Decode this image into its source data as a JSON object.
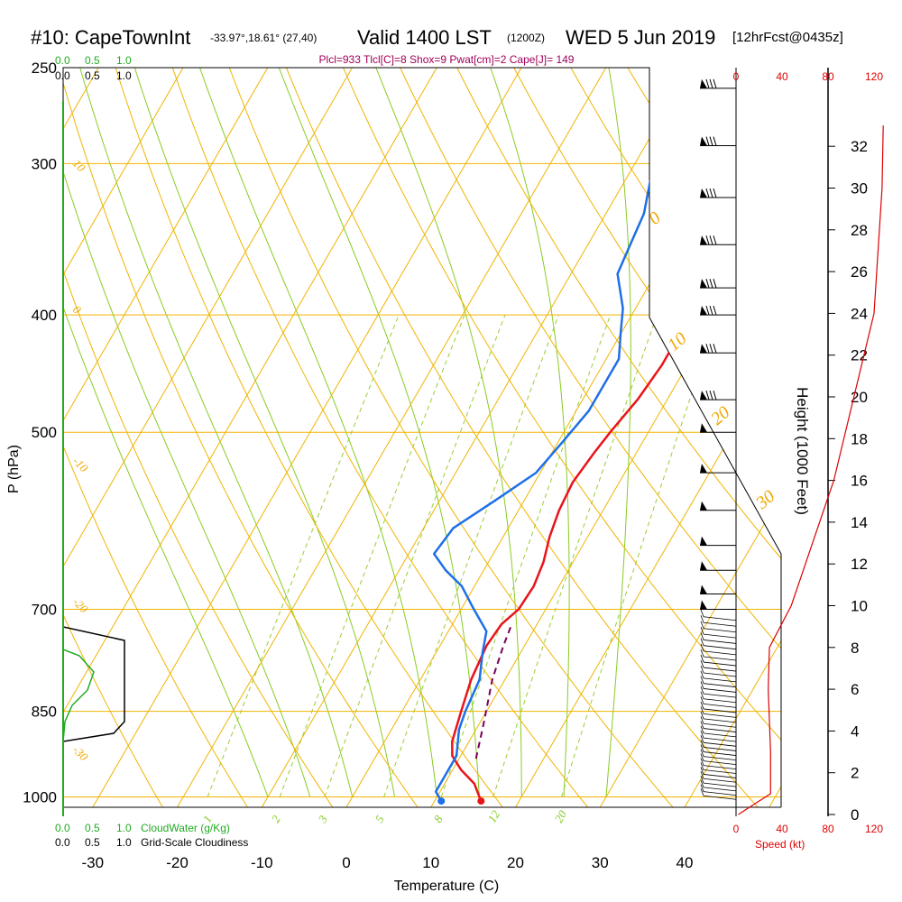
{
  "header": {
    "station": "#10: CapeTownInt",
    "coords": "-33.97°,18.61° (27,40)",
    "valid": "Valid 1400 LST",
    "valid_z": "(1200Z)",
    "date": "WED 5 Jun 2019",
    "forecast": "[12hrFcst@0435z]",
    "params": "Plcl=933 Tlcl[C]=8 Shox=9 Pwat[cm]=2 Cape[J]= 149"
  },
  "axes": {
    "xlabel": "Temperature (C)",
    "ylabel": "P (hPa)",
    "right_label": "Height (1000 Feet)",
    "speed_label": "Speed (kt)",
    "cloudwater_label": "CloudWater (g/Kg)",
    "cloudiness_label": "Grid-Scale Cloudiness"
  },
  "colors": {
    "temperature": "#e8141b",
    "dewpoint": "#1e6fe8",
    "parcel": "#7a0055",
    "isotherm": "#f0b400",
    "dry_adiabat": "#f0b400",
    "moist_adiabat": "#88cc22",
    "mixing_ratio": "#99cc33",
    "wind_speed": "#dd0000",
    "cloud_water": "#22aa22"
  },
  "chart_data": {
    "type": "line",
    "title": "#10: CapeTownInt Valid 1400 LST (1200Z) WED 5 Jun 2019 [12hrFcst@0435z]",
    "xlabel": "Temperature (C)",
    "ylabel": "P (hPa)",
    "xlim": [
      -34,
      48
    ],
    "ylim": [
      1020,
      250
    ],
    "y_scale": "log",
    "x_ticks": [
      -30,
      -20,
      -10,
      0,
      10,
      20,
      30,
      40
    ],
    "x_tick_labels": [
      "-30",
      "-20",
      "-10",
      "0",
      "10",
      "20",
      "30",
      "40"
    ],
    "y_ticks": [
      250,
      300,
      400,
      500,
      700,
      850,
      1000
    ],
    "y_tick_labels": [
      "250",
      "300",
      "400",
      "500",
      "700",
      "850",
      "1000"
    ],
    "height_ticks_kft": [
      0,
      2,
      4,
      6,
      8,
      10,
      12,
      14,
      16,
      18,
      20,
      22,
      24,
      26,
      28,
      30,
      32
    ],
    "height_tick_labels": [
      "0",
      "2",
      "4",
      "6",
      "8",
      "10",
      "12",
      "14",
      "16",
      "18",
      "20",
      "22",
      "24",
      "26",
      "28",
      "30",
      "32"
    ],
    "speed_ticks": [
      "0",
      "40",
      "80",
      "120"
    ],
    "cloud_ticks_green": [
      "0.0",
      "0.5",
      "1.0"
    ],
    "cloud_ticks_black": [
      "0.0",
      "0.5",
      "1.0"
    ],
    "isotherm_labels_left": [
      "10",
      "0",
      "-10",
      "-20",
      "-30"
    ],
    "isotherm_labels_right": [
      "0",
      "10",
      "20",
      "30"
    ],
    "mixing_ratio_labels": [
      "1",
      "2",
      "3",
      "5",
      "8",
      "12",
      "20"
    ],
    "series": [
      {
        "name": "Temperature",
        "points": [
          [
            15.5,
            1008
          ],
          [
            13.5,
            975
          ],
          [
            11.0,
            950
          ],
          [
            9.0,
            925
          ],
          [
            8.0,
            900
          ],
          [
            7.0,
            850
          ],
          [
            6.0,
            800
          ],
          [
            5.5,
            750
          ],
          [
            5.8,
            720
          ],
          [
            6.8,
            700
          ],
          [
            7.0,
            670
          ],
          [
            6.5,
            640
          ],
          [
            5.5,
            610
          ],
          [
            4.8,
            580
          ],
          [
            4.5,
            550
          ],
          [
            5.0,
            520
          ],
          [
            5.5,
            500
          ],
          [
            6.5,
            470
          ],
          [
            7.0,
            440
          ],
          [
            7.0,
            420
          ],
          [
            6.0,
            400
          ],
          [
            5.0,
            375
          ],
          [
            3.0,
            350
          ],
          [
            0.5,
            325
          ],
          [
            -1.5,
            305
          ],
          [
            -4.0,
            285
          ],
          [
            -4.0,
            265
          ]
        ]
      },
      {
        "name": "Dewpoint",
        "points": [
          [
            10.8,
            1008
          ],
          [
            9.5,
            990
          ],
          [
            9.5,
            950
          ],
          [
            9.5,
            925
          ],
          [
            8.0,
            880
          ],
          [
            7.5,
            850
          ],
          [
            7.0,
            800
          ],
          [
            5.5,
            760
          ],
          [
            4.5,
            730
          ],
          [
            1.5,
            700
          ],
          [
            -1.5,
            670
          ],
          [
            -4.5,
            650
          ],
          [
            -7.0,
            630
          ],
          [
            -6.5,
            600
          ],
          [
            -3.5,
            570
          ],
          [
            -0.5,
            540
          ],
          [
            0.5,
            510
          ],
          [
            1.5,
            480
          ],
          [
            1.5,
            460
          ],
          [
            1.5,
            435
          ],
          [
            0.0,
            415
          ],
          [
            -1.5,
            395
          ],
          [
            -4.5,
            370
          ],
          [
            -5.0,
            350
          ],
          [
            -5.5,
            330
          ],
          [
            -7.0,
            310
          ],
          [
            -8.0,
            290
          ],
          [
            -8.5,
            265
          ]
        ]
      },
      {
        "name": "Parcel",
        "points": [
          [
            12.0,
            930
          ],
          [
            10.5,
            870
          ],
          [
            8.5,
            800
          ],
          [
            7.5,
            750
          ],
          [
            7.0,
            720
          ]
        ]
      }
    ],
    "wind_speed_kt": [
      [
        2,
        0
      ],
      [
        30,
        1
      ],
      [
        30,
        3
      ],
      [
        28,
        6
      ],
      [
        29,
        8
      ],
      [
        48,
        10
      ],
      [
        85,
        16
      ],
      [
        120,
        24
      ],
      [
        127,
        30
      ],
      [
        128,
        33
      ]
    ]
  }
}
